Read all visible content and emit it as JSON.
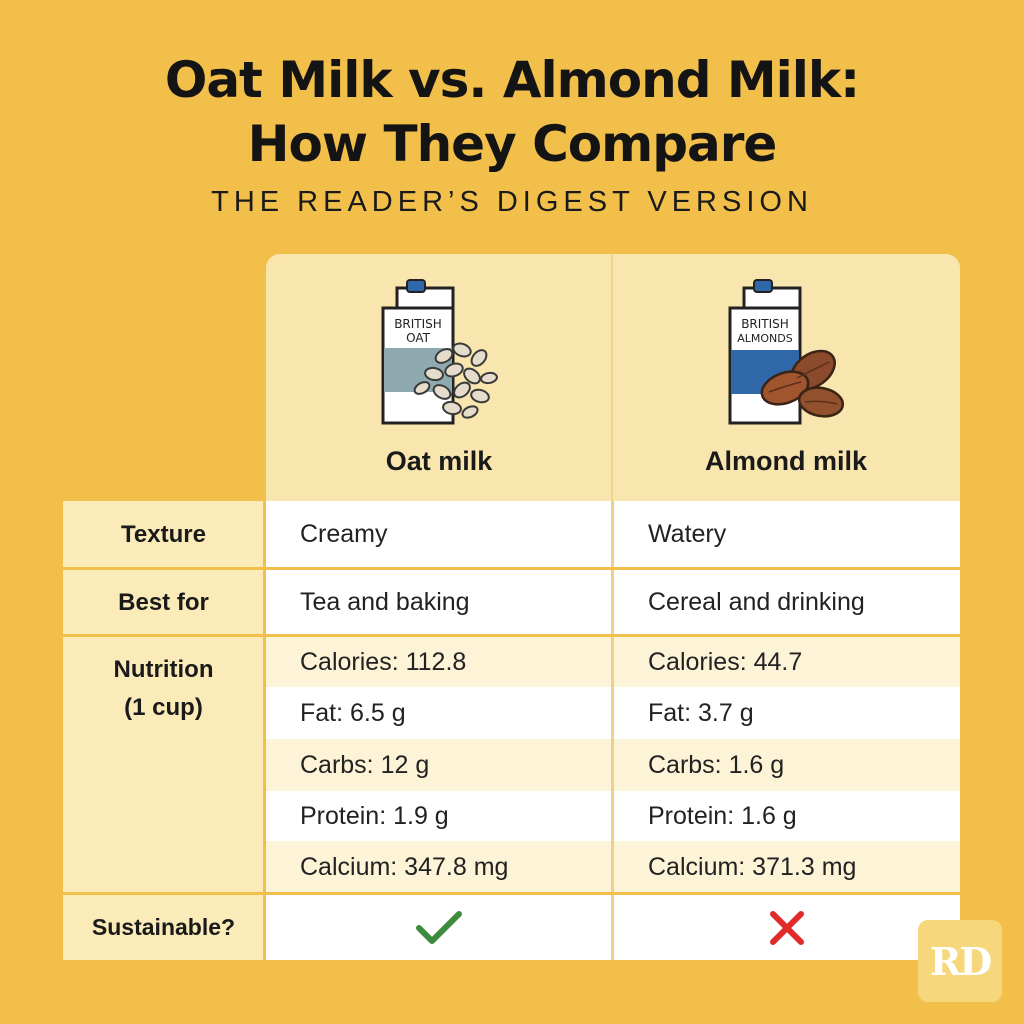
{
  "title": {
    "line1": "Oat Milk vs. Almond Milk:",
    "line2": "How They Compare"
  },
  "subtitle": "THE READER’S DIGEST VERSION",
  "columns": [
    {
      "label": "Oat milk",
      "carton_text": [
        "BRITISH",
        "OAT"
      ],
      "carton_accent": "#8FA9B1",
      "icon": "oat-milk-carton-icon"
    },
    {
      "label": "Almond milk",
      "carton_text": [
        "BRITISH",
        "ALMONDS"
      ],
      "carton_accent": "#2F67A8",
      "icon": "almond-milk-carton-icon"
    }
  ],
  "rows": {
    "texture": {
      "label": "Texture",
      "oat": "Creamy",
      "almond": "Watery"
    },
    "best_for": {
      "label": "Best for",
      "oat": "Tea and baking",
      "almond": "Cereal and drinking"
    },
    "nutrition": {
      "label_line1": "Nutrition",
      "label_line2": "(1 cup)",
      "oat": [
        "Calories: 112.8",
        "Fat: 6.5 g",
        "Carbs: 12 g",
        "Protein: 1.9 g",
        "Calcium: 347.8 mg"
      ],
      "almond": [
        "Calories: 44.7",
        "Fat: 3.7 g",
        "Carbs: 1.6 g",
        "Protein: 1.6 g",
        "Calcium: 371.3 mg"
      ]
    },
    "sustainable": {
      "label": "Sustainable?",
      "oat": "check-icon",
      "almond": "cross-icon"
    }
  },
  "colors": {
    "background": "#F2C04A",
    "check": "#3D8B3D",
    "cross": "#E02B2B"
  },
  "logo": "RD"
}
